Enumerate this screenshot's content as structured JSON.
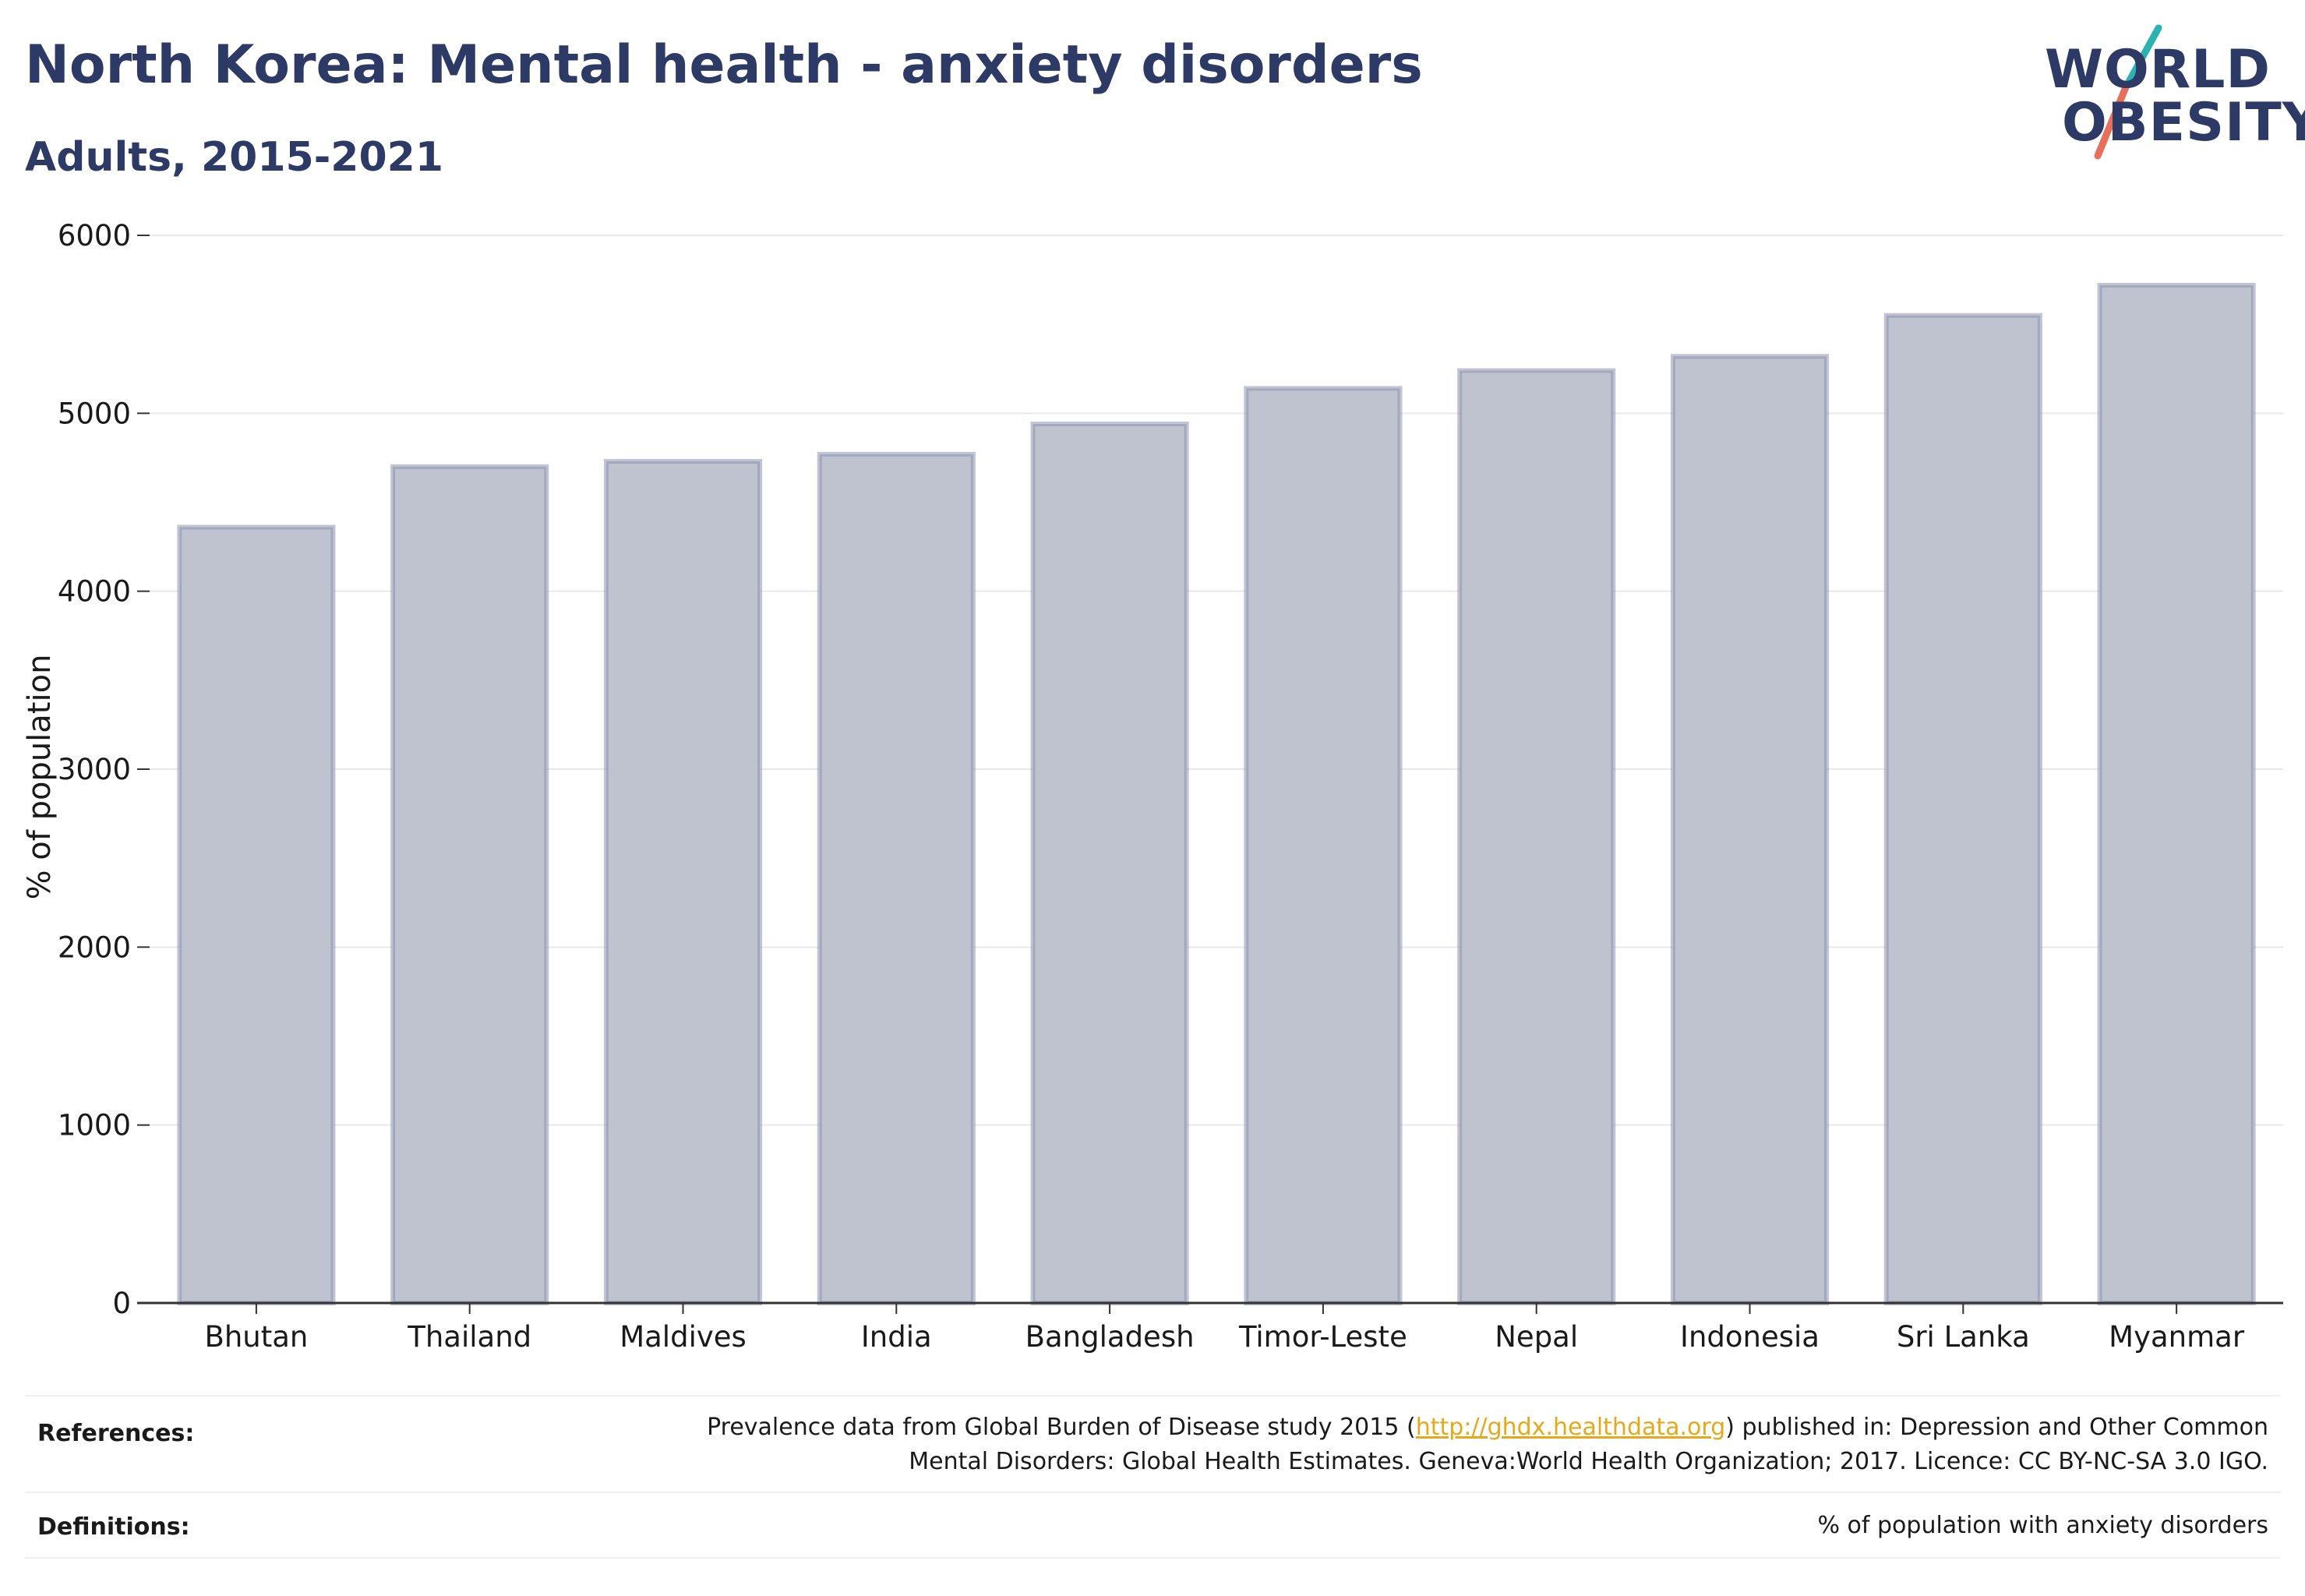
{
  "header": {
    "title": "North Korea: Mental health - anxiety disorders",
    "subtitle": "Adults, 2015-2021"
  },
  "logo": {
    "line1": "WORLD",
    "line2": "OBESITY"
  },
  "chart_data": {
    "type": "bar",
    "categories": [
      "Bhutan",
      "Thailand",
      "Maldives",
      "India",
      "Bangladesh",
      "Timor-Leste",
      "Nepal",
      "Indonesia",
      "Sri Lanka",
      "Myanmar"
    ],
    "values": [
      4360,
      4700,
      4730,
      4770,
      4940,
      5140,
      5240,
      5320,
      5550,
      5720
    ],
    "ylabel": "% of population",
    "xlabel": "",
    "ylim": [
      0,
      6000
    ],
    "yticks": [
      0,
      1000,
      2000,
      3000,
      4000,
      5000,
      6000
    ],
    "grid": true,
    "bar_color": "#bfc2cf",
    "bar_edge_color": "#8e94ad"
  },
  "footer": {
    "references_label": "References:",
    "references_text_before": "Prevalence data from Global Burden of Disease study 2015 (",
    "references_link": "http://ghdx.healthdata.org",
    "references_text_after": ") published in: Depression and Other Common",
    "references_text_line2": "Mental Disorders: Global Health Estimates. Geneva:World Health Organization; 2017. Licence: CC BY-NC-SA 3.0 IGO.",
    "definitions_label": "Definitions:",
    "definitions_text": "% of population with anxiety disorders"
  }
}
